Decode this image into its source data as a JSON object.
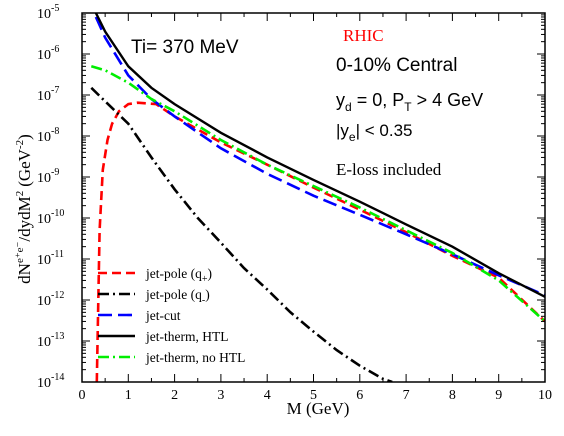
{
  "chart_data": {
    "type": "line",
    "xlabel": "M (GeV)",
    "ylabel_main": "dN",
    "ylabel_sup": "e⁺e⁻",
    "ylabel_rest": "/dydM",
    "ylabel_sup2": "2",
    "ylabel_unit": "(GeV",
    "ylabel_unit_sup": "-2",
    "ylabel_unit_close": ")",
    "xlim": [
      0,
      10
    ],
    "ylim": [
      1e-14,
      1e-05
    ],
    "yscale": "log",
    "x_ticks": [
      0,
      1,
      2,
      3,
      4,
      5,
      6,
      7,
      8,
      9,
      10
    ],
    "y_tick_exponents": [
      -14,
      -13,
      -12,
      -11,
      -10,
      -9,
      -8,
      -7,
      -6,
      -5
    ],
    "y_tick_base": "10",
    "grid": false,
    "legend_position": "bottom-left",
    "annotations": {
      "temperature": "Ti= 370  MeV",
      "collider": "RHIC",
      "centrality": "0-10% Central",
      "rapidity_cut": {
        "main": "y",
        "sub": "d",
        "rest": " = 0, P",
        "sub2": "T",
        "rest2": " > 4 GeV"
      },
      "electron_cut": {
        "main": "|y",
        "sub": "e",
        "rest": "| < 0.35"
      },
      "eloss": "E-loss included"
    },
    "series": [
      {
        "name": "jet-pole (q",
        "name_sub": "+",
        "name_close": ")",
        "color": "#ff0000",
        "dash": "dashed",
        "x": [
          0.32,
          0.38,
          0.45,
          0.55,
          0.65,
          0.8,
          1.0,
          1.2,
          1.6,
          2,
          3,
          4,
          5,
          6,
          7,
          8,
          9,
          10
        ],
        "y": [
          1e-14,
          5e-11,
          1.5e-09,
          8e-09,
          2e-08,
          4e-08,
          6e-08,
          6.5e-08,
          6e-08,
          3e-08,
          7e-09,
          2e-09,
          5.5e-10,
          1.6e-10,
          4.5e-11,
          1.2e-11,
          3.5e-12,
          3e-13
        ]
      },
      {
        "name": "jet-pole (q",
        "name_sub": "-",
        "name_close": ")",
        "color": "#000000",
        "dash": "dashdot",
        "x": [
          0.2,
          0.5,
          1.0,
          1.5,
          2,
          2.5,
          3,
          3.5,
          4,
          4.5,
          5,
          5.5,
          6,
          6.5,
          6.7
        ],
        "y": [
          1.5e-07,
          7e-08,
          2e-08,
          3e-09,
          5e-10,
          1e-10,
          2.5e-11,
          6e-12,
          1.8e-12,
          5e-13,
          1.7e-13,
          6e-14,
          2.5e-14,
          1.2e-14,
          1e-14
        ]
      },
      {
        "name": "jet-cut",
        "color": "#0000ff",
        "dash": "longdash",
        "x": [
          0.3,
          0.5,
          1,
          1.5,
          2,
          3,
          4,
          5,
          6,
          7,
          8,
          9,
          10
        ],
        "y": [
          8e-06,
          2.5e-06,
          3e-07,
          8e-08,
          3e-08,
          5e-09,
          1.2e-09,
          3.5e-10,
          1.2e-10,
          4e-11,
          1.3e-11,
          4e-12,
          1.3e-12
        ]
      },
      {
        "name": "jet-therm, HTL",
        "color": "#000000",
        "dash": "solid",
        "x": [
          0.3,
          0.5,
          1,
          1.5,
          2,
          3,
          4,
          5,
          6,
          7,
          8,
          9,
          10
        ],
        "y": [
          1e-05,
          3.5e-06,
          5e-07,
          1.5e-07,
          6e-08,
          1.2e-08,
          3e-09,
          8.5e-10,
          2.5e-10,
          7e-11,
          2e-11,
          4.5e-12,
          1.2e-12
        ]
      },
      {
        "name": "jet-therm, no HTL",
        "color": "#00ee00",
        "dash": "dashdot",
        "x": [
          0.2,
          0.5,
          1,
          1.5,
          2,
          3,
          4,
          5,
          6,
          7,
          8,
          9,
          10
        ],
        "y": [
          5e-07,
          4e-07,
          2e-07,
          8e-08,
          4e-08,
          8e-09,
          2e-09,
          6e-10,
          1.8e-10,
          5e-11,
          1.4e-11,
          3e-12,
          3e-13
        ]
      }
    ]
  }
}
